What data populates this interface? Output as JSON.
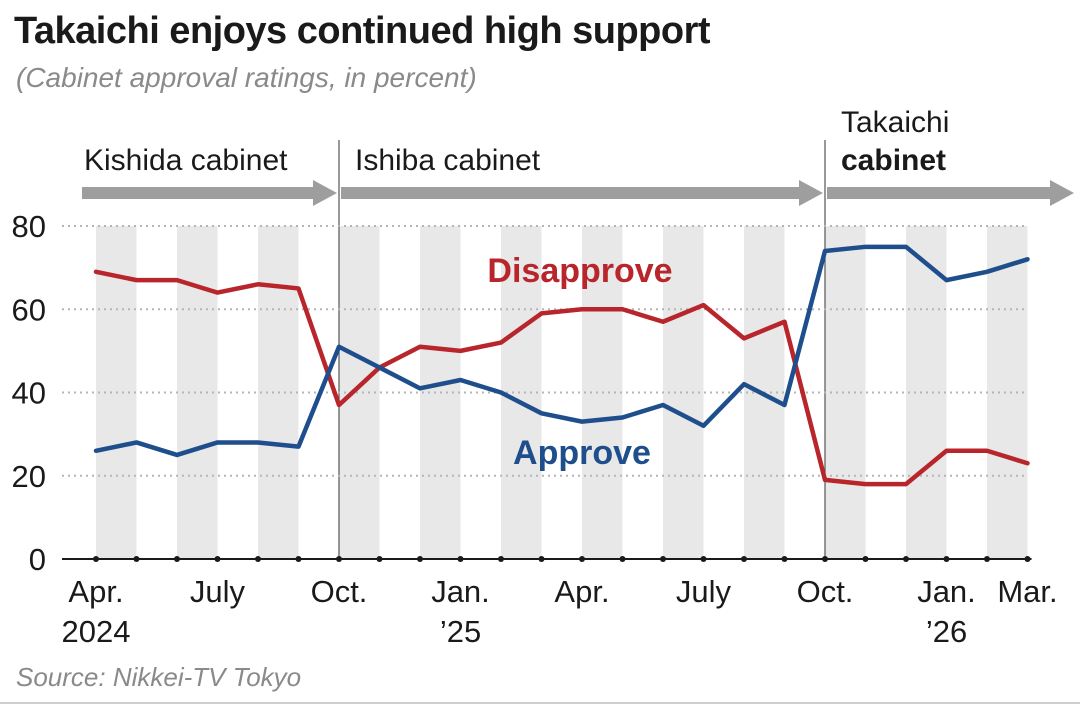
{
  "title": "Takaichi enjoys continued high support",
  "subtitle": "(Cabinet approval ratings, in percent)",
  "source": "Source: Nikkei-TV Tokyo",
  "chart_data": {
    "type": "line",
    "ylim": [
      0,
      80
    ],
    "yticks": [
      0,
      20,
      40,
      60,
      80
    ],
    "x": [
      "2024-04",
      "2024-05",
      "2024-06",
      "2024-07",
      "2024-08",
      "2024-09",
      "2024-10",
      "2024-11",
      "2024-12",
      "2025-01",
      "2025-02",
      "2025-03",
      "2025-04",
      "2025-05",
      "2025-06",
      "2025-07",
      "2025-08",
      "2025-09",
      "2025-10",
      "2025-11",
      "2025-12",
      "2026-01",
      "2026-02",
      "2026-03"
    ],
    "xtick_labels": [
      {
        "month": "2024-04",
        "lines": [
          "Apr.",
          "2024"
        ]
      },
      {
        "month": "2024-07",
        "lines": [
          "July"
        ]
      },
      {
        "month": "2024-10",
        "lines": [
          "Oct."
        ]
      },
      {
        "month": "2025-01",
        "lines": [
          "Jan.",
          "’25"
        ]
      },
      {
        "month": "2025-04",
        "lines": [
          "Apr."
        ]
      },
      {
        "month": "2025-07",
        "lines": [
          "July"
        ]
      },
      {
        "month": "2025-10",
        "lines": [
          "Oct."
        ]
      },
      {
        "month": "2026-01",
        "lines": [
          "Jan.",
          "’26"
        ]
      },
      {
        "month": "2026-03",
        "lines": [
          "Mar."
        ]
      }
    ],
    "series": [
      {
        "name": "Disapprove",
        "color": "#b8262c",
        "values": [
          69,
          67,
          67,
          64,
          66,
          65,
          37,
          46,
          51,
          50,
          52,
          59,
          60,
          60,
          57,
          61,
          53,
          57,
          19,
          18,
          18,
          26,
          26,
          23
        ]
      },
      {
        "name": "Approve",
        "color": "#1f4e8c",
        "values": [
          26,
          28,
          25,
          28,
          28,
          27,
          51,
          46,
          41,
          43,
          40,
          35,
          33,
          34,
          37,
          32,
          42,
          37,
          74,
          75,
          75,
          67,
          69,
          72
        ]
      }
    ],
    "cabinets": [
      {
        "label": [
          "Kishida cabinet"
        ],
        "start": "2024-04",
        "end": "2024-10",
        "bold": false
      },
      {
        "label": [
          "Ishiba cabinet"
        ],
        "start": "2024-10",
        "end": "2025-10",
        "bold": false
      },
      {
        "label": [
          "Takaichi",
          "cabinet"
        ],
        "start": "2025-10",
        "end": "2026-03",
        "bold": true
      }
    ],
    "grid": "alternating vertical shaded month bands"
  }
}
